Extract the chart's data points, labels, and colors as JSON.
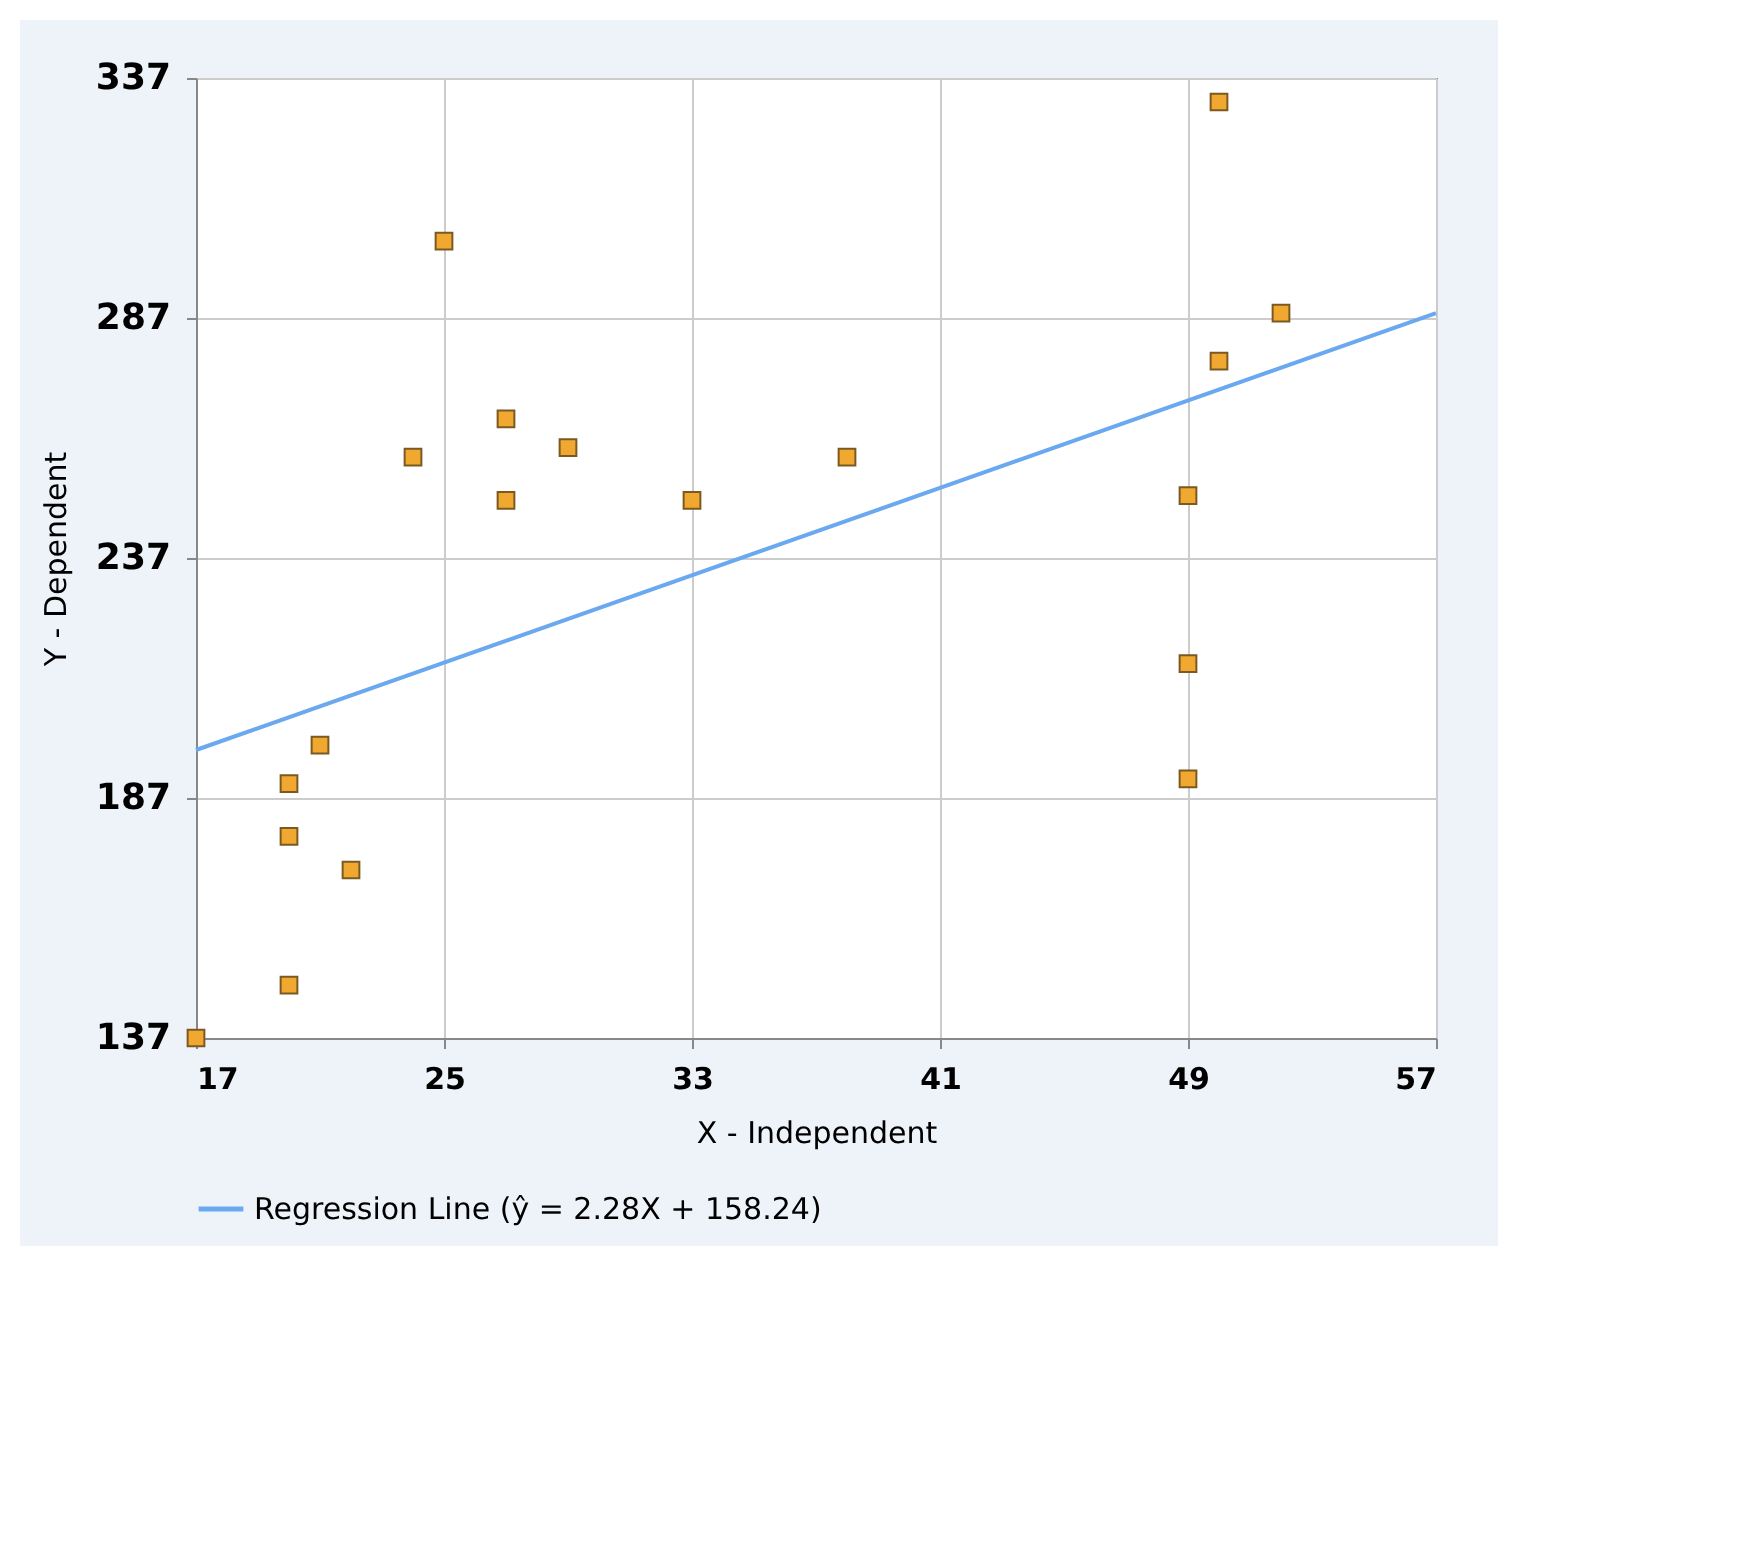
{
  "chart_data": {
    "type": "scatter",
    "xlabel": "X - Independent",
    "ylabel": "Y - Dependent",
    "xlim": [
      17,
      57
    ],
    "xticks": [
      17,
      25,
      33,
      41,
      49,
      57
    ],
    "ylim": [
      137,
      337
    ],
    "yticks": [
      137,
      187,
      237,
      287,
      337
    ],
    "grid": true,
    "legend": "bottom",
    "marker": "square",
    "series": [
      {
        "type": "scatter",
        "color": "#f0a830",
        "x": [
          17,
          20,
          20,
          20,
          21,
          22,
          24,
          25,
          27,
          27,
          29,
          33,
          38,
          49,
          49,
          49,
          50,
          50,
          52
        ],
        "values": [
          137,
          148,
          179,
          190,
          198,
          172,
          258,
          303,
          266,
          249,
          260,
          249,
          258,
          250,
          215,
          191,
          278,
          332,
          288
        ]
      },
      {
        "type": "line",
        "name": "Regression Line (ŷ = 2.28X + 158.24)",
        "color": "#6aa8f0",
        "line_style": "solid",
        "marker": "none",
        "x": [
          17,
          57
        ],
        "values": [
          197,
          288
        ]
      }
    ]
  }
}
